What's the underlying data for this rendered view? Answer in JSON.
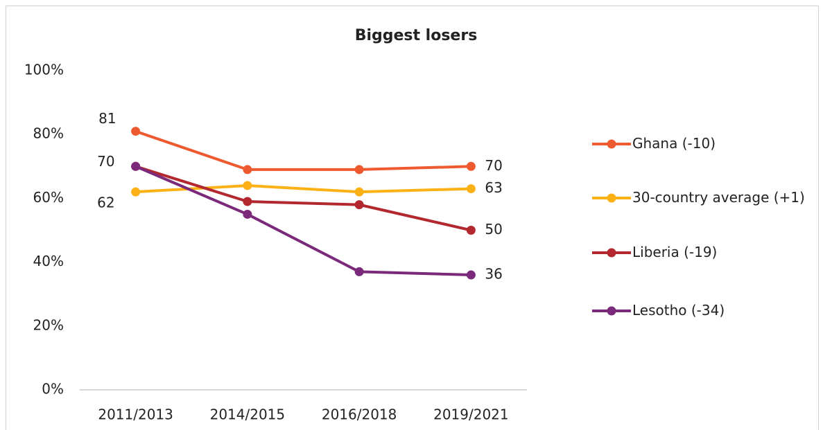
{
  "chart_data": {
    "type": "line",
    "title": "Biggest losers",
    "categories": [
      "2011/2013",
      "2014/2015",
      "2016/2018",
      "2019/2021"
    ],
    "series": [
      {
        "name": "Ghana (-10)",
        "color": "#ee5a2f",
        "values": [
          81,
          69,
          69,
          70
        ],
        "value_labels": [
          "81",
          null,
          null,
          "70"
        ]
      },
      {
        "name": "30-country average (+1)",
        "color": "#fbb116",
        "values": [
          62,
          64,
          62,
          63
        ],
        "value_labels": [
          "62",
          null,
          null,
          "63"
        ]
      },
      {
        "name": "Liberia (-19)",
        "color": "#b3282e",
        "values": [
          70,
          59,
          58,
          50
        ],
        "value_labels": [
          "70",
          null,
          null,
          "50"
        ]
      },
      {
        "name": "Lesotho (-34)",
        "color": "#7b2a7b",
        "values": [
          70,
          55,
          37,
          36
        ],
        "value_labels": [
          null,
          null,
          null,
          "36"
        ]
      }
    ],
    "ylim": [
      0,
      100
    ],
    "yticks": [
      {
        "value": 0,
        "label": "0%"
      },
      {
        "value": 20,
        "label": "20%"
      },
      {
        "value": 40,
        "label": "40%"
      },
      {
        "value": 60,
        "label": "60%"
      },
      {
        "value": 80,
        "label": "80%"
      },
      {
        "value": 100,
        "label": "100%"
      }
    ],
    "grid": false,
    "legend": "right"
  }
}
